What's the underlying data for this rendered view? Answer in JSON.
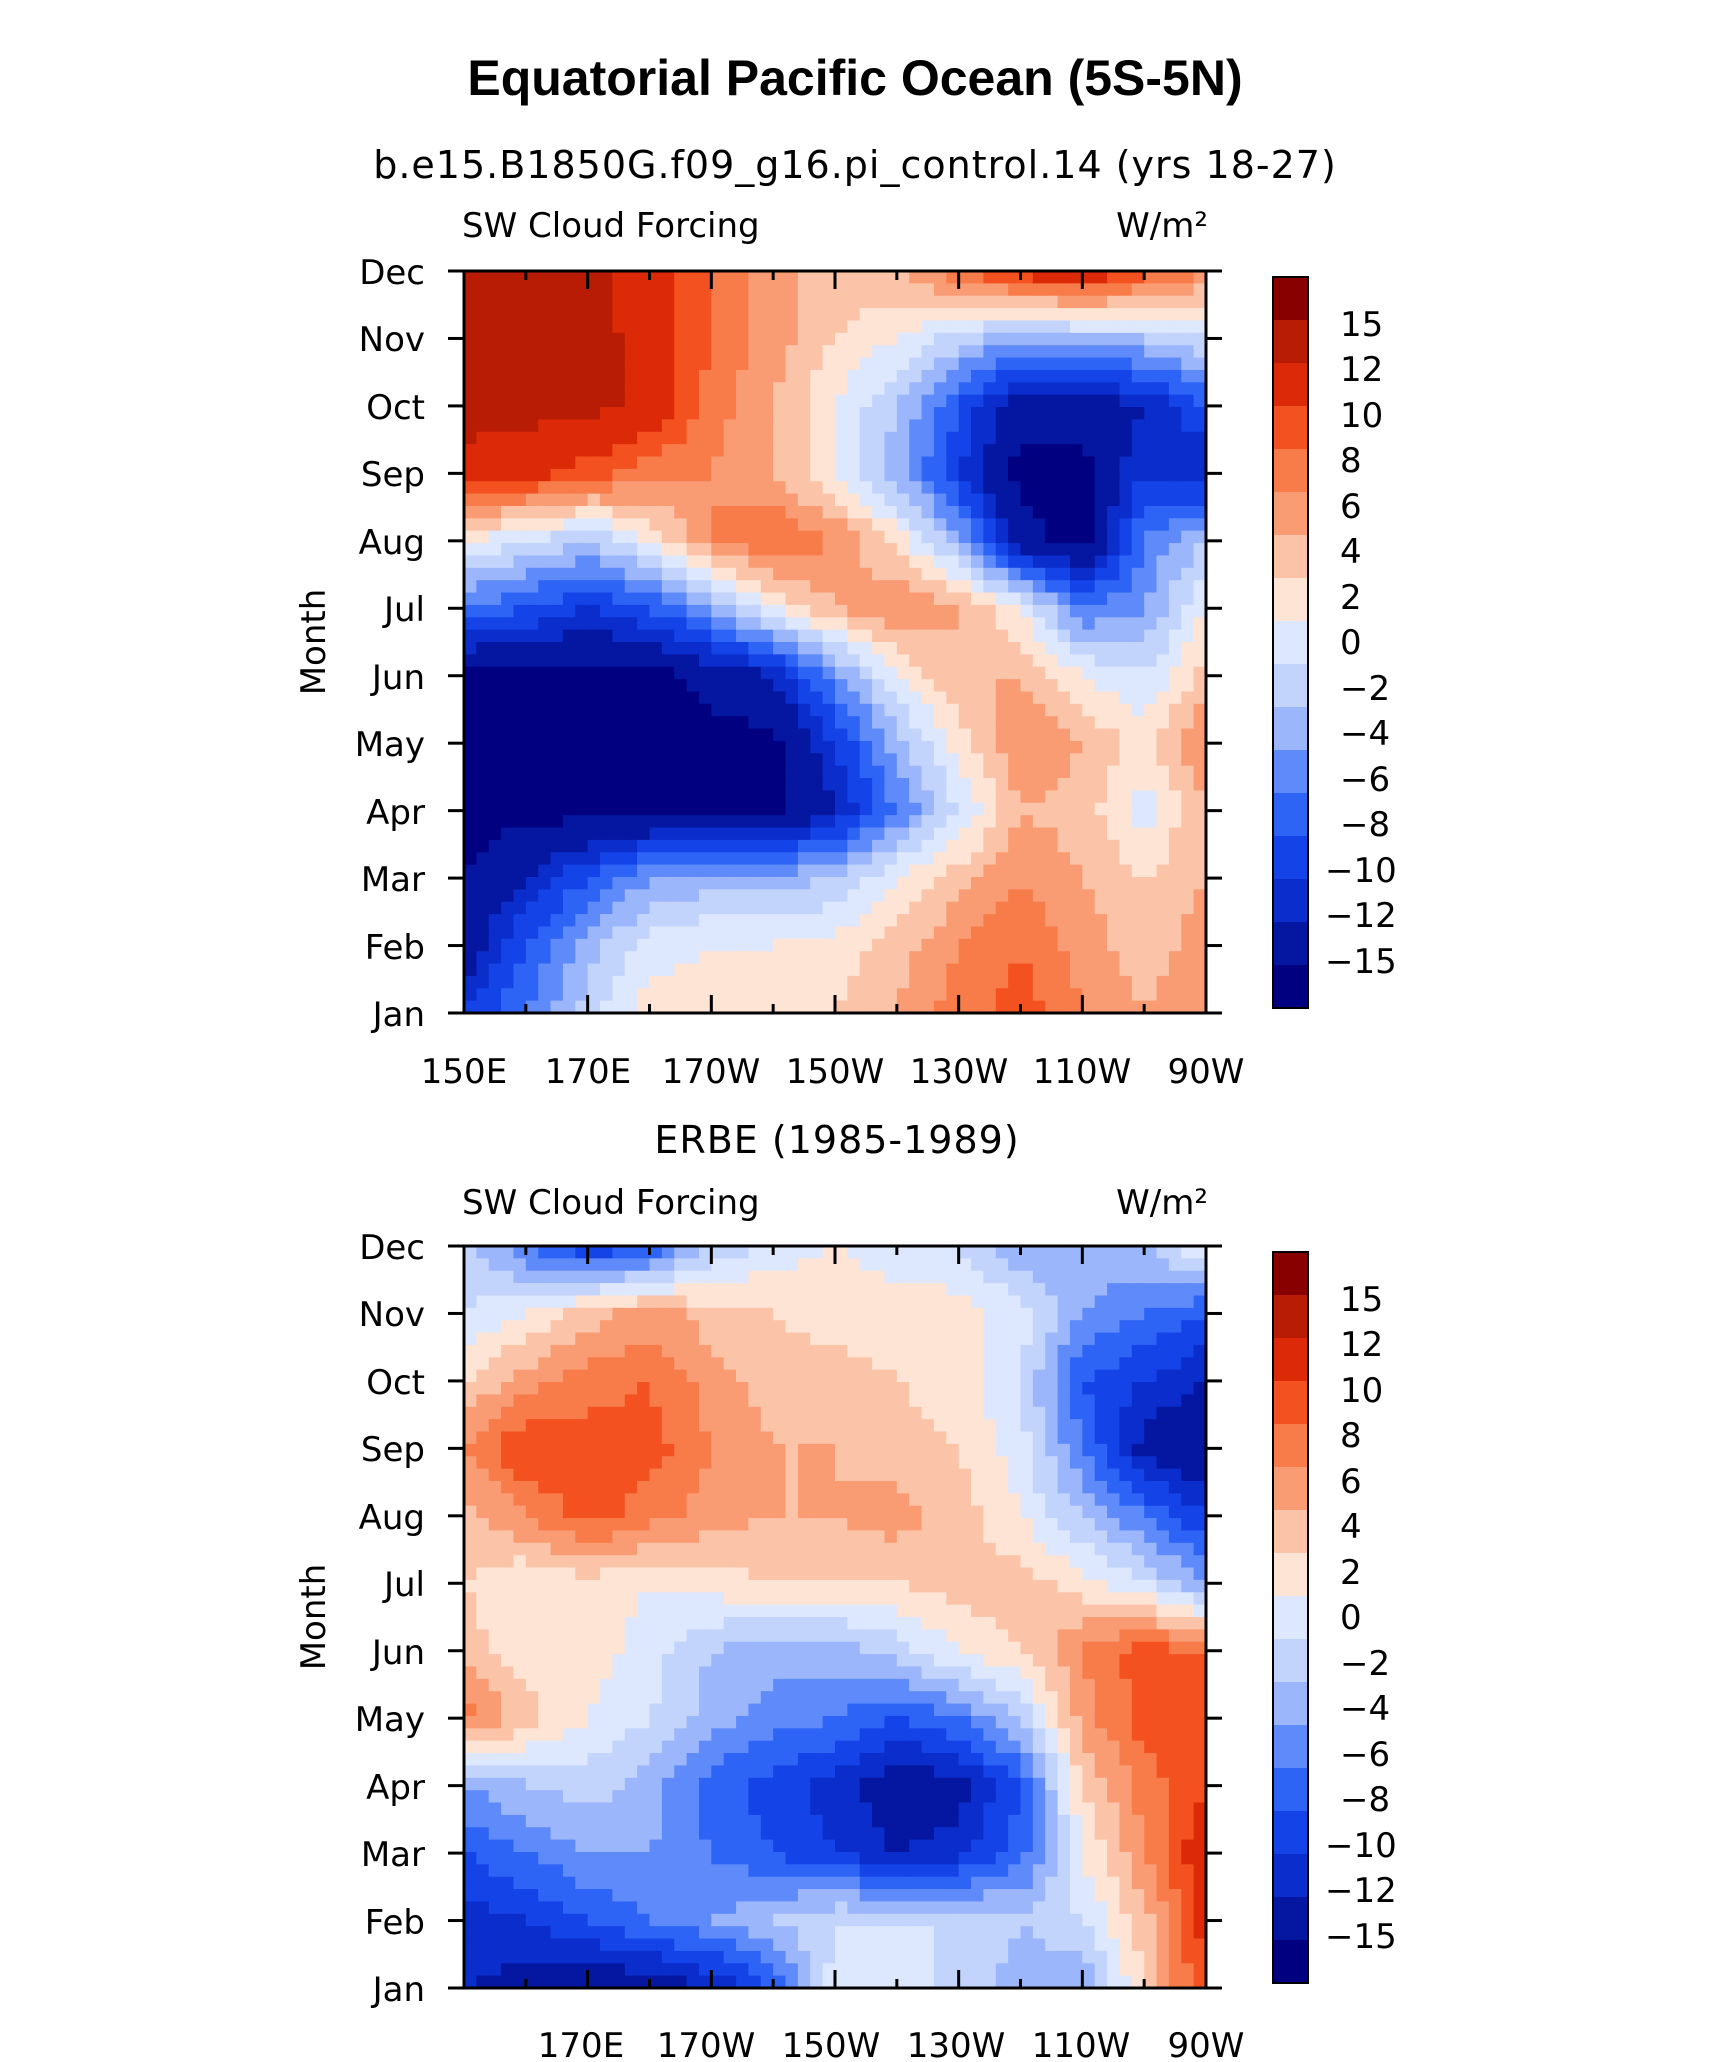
{
  "title": "Equatorial Pacific Ocean (5S-5N)",
  "chart_data": [
    {
      "type": "heatmap",
      "subtitle": "b.e15.B1850G.f09_g16.pi_control.14 (yrs 18-27)",
      "left_label": "SW Cloud Forcing",
      "right_label": "W/m²",
      "ylabel": "Month",
      "x_tick_labels": [
        "150E",
        "170E",
        "170W",
        "150W",
        "130W",
        "110W",
        "90W"
      ],
      "y_tick_labels": [
        "Jan",
        "Feb",
        "Mar",
        "Apr",
        "May",
        "Jun",
        "Jul",
        "Aug",
        "Sep",
        "Oct",
        "Nov",
        "Dec"
      ],
      "xlim_deg_east": [
        150,
        270
      ],
      "levels": [
        -15,
        -12,
        -10,
        -8,
        -6,
        -4,
        -2,
        0,
        2,
        4,
        6,
        8,
        10,
        12,
        15
      ],
      "level_labels": [
        "15",
        "12",
        "10",
        "8",
        "6",
        "4",
        "2",
        "0",
        "−2",
        "−4",
        "−6",
        "−8",
        "−10",
        "−12",
        "−15"
      ],
      "x_deg_east": [
        150,
        160,
        170,
        180,
        190,
        200,
        210,
        220,
        230,
        240,
        250,
        260,
        270
      ],
      "months": [
        "Jan",
        "Feb",
        "Mar",
        "Apr",
        "May",
        "Jun",
        "Jul",
        "Aug",
        "Sep",
        "Oct",
        "Nov",
        "Dec"
      ],
      "z": [
        [
          -10,
          -6,
          -1,
          3,
          3,
          3,
          4,
          6,
          9,
          11,
          8,
          6,
          8
        ],
        [
          -14,
          -8,
          -3,
          1,
          2,
          2,
          3,
          5,
          8,
          10,
          7,
          5,
          7
        ],
        [
          -15,
          -12,
          -8,
          -4,
          -3,
          -3,
          -2,
          2,
          5,
          8,
          6,
          4,
          6
        ],
        [
          -16,
          -16,
          -16,
          -16,
          -16,
          -16,
          -12,
          -6,
          0,
          6,
          5,
          1,
          6
        ],
        [
          -16,
          -16,
          -16,
          -16,
          -16,
          -16,
          -10,
          -3,
          3,
          8,
          6,
          3,
          8
        ],
        [
          -16,
          -16,
          -16,
          -16,
          -14,
          -12,
          -5,
          2,
          6,
          6,
          2,
          0,
          5
        ],
        [
          -6,
          -8,
          -10,
          -8,
          -4,
          2,
          6,
          8,
          6,
          2,
          -6,
          -4,
          2
        ],
        [
          2,
          0,
          -2,
          2,
          8,
          10,
          8,
          3,
          -3,
          -14,
          -16,
          -6,
          -2
        ],
        [
          14,
          13,
          11,
          9,
          8,
          6,
          2,
          -3,
          -10,
          -16,
          -16,
          -10,
          -12
        ],
        [
          16,
          16,
          16,
          14,
          9,
          6,
          2,
          -2,
          -8,
          -14,
          -14,
          -12,
          -8
        ],
        [
          16,
          16,
          16,
          14,
          10,
          7,
          4,
          2,
          -1,
          -4,
          -3,
          -2,
          0
        ],
        [
          16,
          16,
          16,
          13,
          10,
          7,
          5,
          6,
          10,
          13,
          15,
          11,
          8
        ]
      ]
    },
    {
      "type": "heatmap",
      "subtitle": "ERBE (1985-1989)",
      "left_label": "SW Cloud Forcing",
      "right_label": "W/m²",
      "ylabel": "Month",
      "x_tick_labels": [
        "170E",
        "170W",
        "150W",
        "130W",
        "110W",
        "90W"
      ],
      "y_tick_labels": [
        "Jan",
        "Feb",
        "Mar",
        "Apr",
        "May",
        "Jun",
        "Jul",
        "Aug",
        "Sep",
        "Oct",
        "Nov",
        "Dec"
      ],
      "xlim_deg_east": [
        150,
        270
      ],
      "levels": [
        -15,
        -12,
        -10,
        -8,
        -6,
        -4,
        -2,
        0,
        2,
        4,
        6,
        8,
        10,
        12,
        15
      ],
      "level_labels": [
        "15",
        "12",
        "10",
        "8",
        "6",
        "4",
        "2",
        "0",
        "−2",
        "−4",
        "−6",
        "−8",
        "−10",
        "−12",
        "−15"
      ],
      "x_deg_east": [
        150,
        160,
        170,
        180,
        190,
        200,
        210,
        220,
        230,
        240,
        250,
        260,
        270
      ],
      "months": [
        "Jan",
        "Feb",
        "Mar",
        "Apr",
        "May",
        "Jun",
        "Jul",
        "Aug",
        "Sep",
        "Oct",
        "Nov",
        "Dec"
      ],
      "z": [
        [
          -12,
          -13,
          -14,
          -14,
          -12,
          -8,
          1,
          2,
          -1,
          -3,
          -4,
          4,
          12
        ],
        [
          -11,
          -10,
          -8,
          -6,
          -4,
          -2,
          0,
          0,
          0,
          -2,
          0,
          5,
          13
        ],
        [
          -8,
          -6,
          -4,
          -4,
          -6,
          -8,
          -10,
          -12,
          -11,
          -7,
          2,
          8,
          14
        ],
        [
          -4,
          -2,
          -1,
          -3,
          -7,
          -9,
          -11,
          -14,
          -13,
          -8,
          4,
          9,
          12
        ],
        [
          9,
          5,
          2,
          0,
          -3,
          -5,
          -6,
          -8,
          -6,
          -2,
          7,
          11,
          11
        ],
        [
          5,
          3,
          3,
          1,
          -2,
          -3,
          -3,
          -1,
          2,
          4,
          8,
          11,
          10
        ],
        [
          4,
          2,
          3,
          2,
          3,
          4,
          4,
          4,
          5,
          5,
          3,
          0,
          -4
        ],
        [
          5,
          8,
          11,
          9,
          7,
          6,
          6,
          7,
          5,
          2,
          -2,
          -6,
          -10
        ],
        [
          8,
          12,
          11,
          11,
          8,
          6,
          6,
          5,
          4,
          1,
          -6,
          -13,
          -15
        ],
        [
          4,
          7,
          9,
          10,
          7,
          5,
          5,
          4,
          3,
          0,
          -8,
          -10,
          -12
        ],
        [
          0,
          2,
          5,
          7,
          5,
          4,
          3,
          3,
          3,
          1,
          -4,
          -6,
          -8
        ],
        [
          -1,
          -6,
          -10,
          -8,
          -2,
          1,
          2,
          1,
          0,
          -4,
          -3,
          -2,
          2
        ]
      ]
    }
  ],
  "colors": [
    "#000080",
    "#0516a0",
    "#0a2dcb",
    "#1443e8",
    "#2d64f5",
    "#5f8bfa",
    "#9cb6fb",
    "#c3d4fc",
    "#dde7fd",
    "#fde4d5",
    "#fbc4a8",
    "#f99c74",
    "#f77c4a",
    "#f45120",
    "#dc2a08",
    "#b81c05",
    "#880000"
  ]
}
